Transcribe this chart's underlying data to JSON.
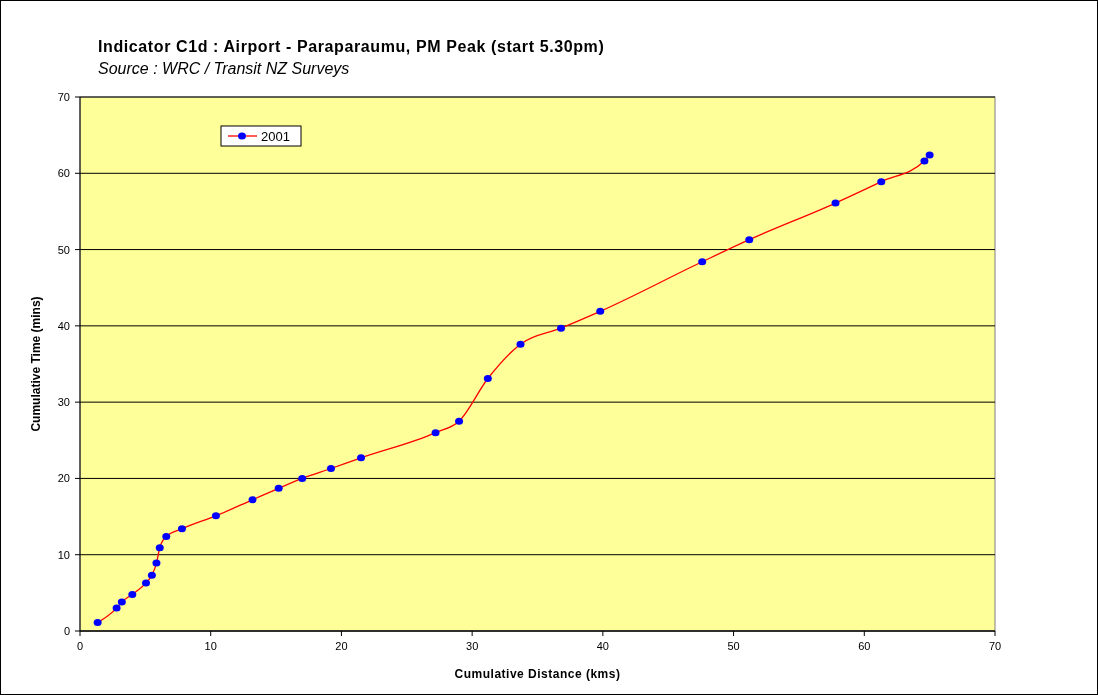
{
  "chart_data": {
    "type": "line",
    "title": "Indicator C1d : Airport - Paraparaumu, PM Peak (start 5.30pm)",
    "subtitle": "Source : WRC / Transit NZ Surveys",
    "xlabel": "Cumulative Distance (kms)",
    "ylabel": "Cumulative Time (mins)",
    "x": [
      1.35,
      2.8,
      3.2,
      4.0,
      5.05,
      5.5,
      5.85,
      6.1,
      6.6,
      7.8,
      10.4,
      13.2,
      15.2,
      17.0,
      19.2,
      21.5,
      27.2,
      29.0,
      31.2,
      33.7,
      36.8,
      39.8,
      47.6,
      51.2,
      57.8,
      61.3,
      64.6,
      65.0
    ],
    "series": [
      {
        "name": "2001",
        "color": "#ff0000",
        "values": [
          1.1,
          3.0,
          3.8,
          4.8,
          6.3,
          7.3,
          8.9,
          10.9,
          12.4,
          13.4,
          15.1,
          17.2,
          18.7,
          20.0,
          21.3,
          22.7,
          26.0,
          27.5,
          33.1,
          37.6,
          39.7,
          41.9,
          48.4,
          51.3,
          56.1,
          58.9,
          61.6,
          62.4
        ]
      }
    ],
    "xlim": [
      0,
      70
    ],
    "xticks": [
      0,
      10,
      20,
      30,
      40,
      50,
      60,
      70
    ],
    "ylim": [
      0,
      70
    ],
    "yticks": [
      0,
      10,
      20,
      30,
      40,
      50,
      60,
      70
    ],
    "grid": "y",
    "legend": "top left",
    "marker": "circle",
    "line_style": "solid"
  }
}
